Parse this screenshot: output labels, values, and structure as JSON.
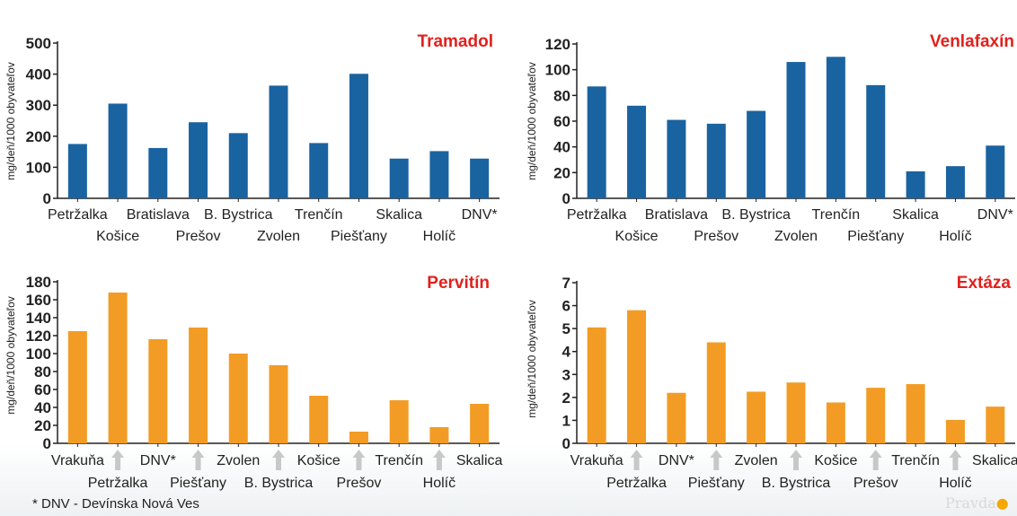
{
  "footnote": "* DNV - Devínska Nová Ves",
  "watermark": "Pravda",
  "colors": {
    "blue": "#1a63a1",
    "orange": "#f39c25",
    "title": "#e2201c",
    "axis": "#222222"
  },
  "chart_data": [
    {
      "type": "bar",
      "title": "Tramadol",
      "ylabel": "mg/deň/1000 obyvateľov",
      "color": "#1a63a1",
      "ylim": [
        0,
        500
      ],
      "yticks": [
        0,
        100,
        200,
        300,
        400,
        500
      ],
      "categories": [
        "Petržalka",
        "Košice",
        "Bratislava",
        "Prešov",
        "B. Bystrica",
        "Zvolen",
        "Trenčín",
        "Piešťany",
        "Skalica",
        "Holíč",
        "DNV*"
      ],
      "values": [
        175,
        305,
        162,
        245,
        210,
        363,
        178,
        401,
        128,
        152,
        128
      ]
    },
    {
      "type": "bar",
      "title": "Venlafaxín",
      "ylabel": "mg/deň/1000 obyvateľov",
      "color": "#1a63a1",
      "ylim": [
        0,
        120
      ],
      "yticks": [
        0,
        20,
        40,
        60,
        80,
        100,
        120
      ],
      "categories": [
        "Petržalka",
        "Košice",
        "Bratislava",
        "Prešov",
        "B. Bystrica",
        "Zvolen",
        "Trenčín",
        "Piešťany",
        "Skalica",
        "Holíč",
        "DNV*"
      ],
      "values": [
        87,
        72,
        61,
        58,
        68,
        106,
        110,
        88,
        21,
        25,
        41
      ]
    },
    {
      "type": "bar",
      "title": "Pervitín",
      "ylabel": "mg/deň/1000 obyvateľov",
      "color": "#f39c25",
      "ylim": [
        0,
        180
      ],
      "yticks": [
        0,
        20,
        40,
        60,
        80,
        100,
        120,
        140,
        160,
        180
      ],
      "categories": [
        "Vrakuňa",
        "Petržalka",
        "DNV*",
        "Piešťany",
        "Zvolen",
        "B. Bystrica",
        "Košice",
        "Prešov",
        "Trenčín",
        "Holíč",
        "Skalica"
      ],
      "values": [
        125,
        168,
        116,
        129,
        100,
        87,
        53,
        13,
        48,
        18,
        44
      ]
    },
    {
      "type": "bar",
      "title": "Extáza",
      "ylabel": "mg/deň/1000 obyvateľov",
      "color": "#f39c25",
      "ylim": [
        0,
        7
      ],
      "yticks": [
        0,
        1,
        2,
        3,
        4,
        5,
        6,
        7
      ],
      "categories": [
        "Vrakuňa",
        "Petržalka",
        "DNV*",
        "Piešťany",
        "Zvolen",
        "B. Bystrica",
        "Košice",
        "Prešov",
        "Trenčín",
        "Holíč",
        "Skalica"
      ],
      "values": [
        5.05,
        5.8,
        2.2,
        4.4,
        2.25,
        2.65,
        1.78,
        2.42,
        2.58,
        1.02,
        1.6
      ]
    }
  ]
}
